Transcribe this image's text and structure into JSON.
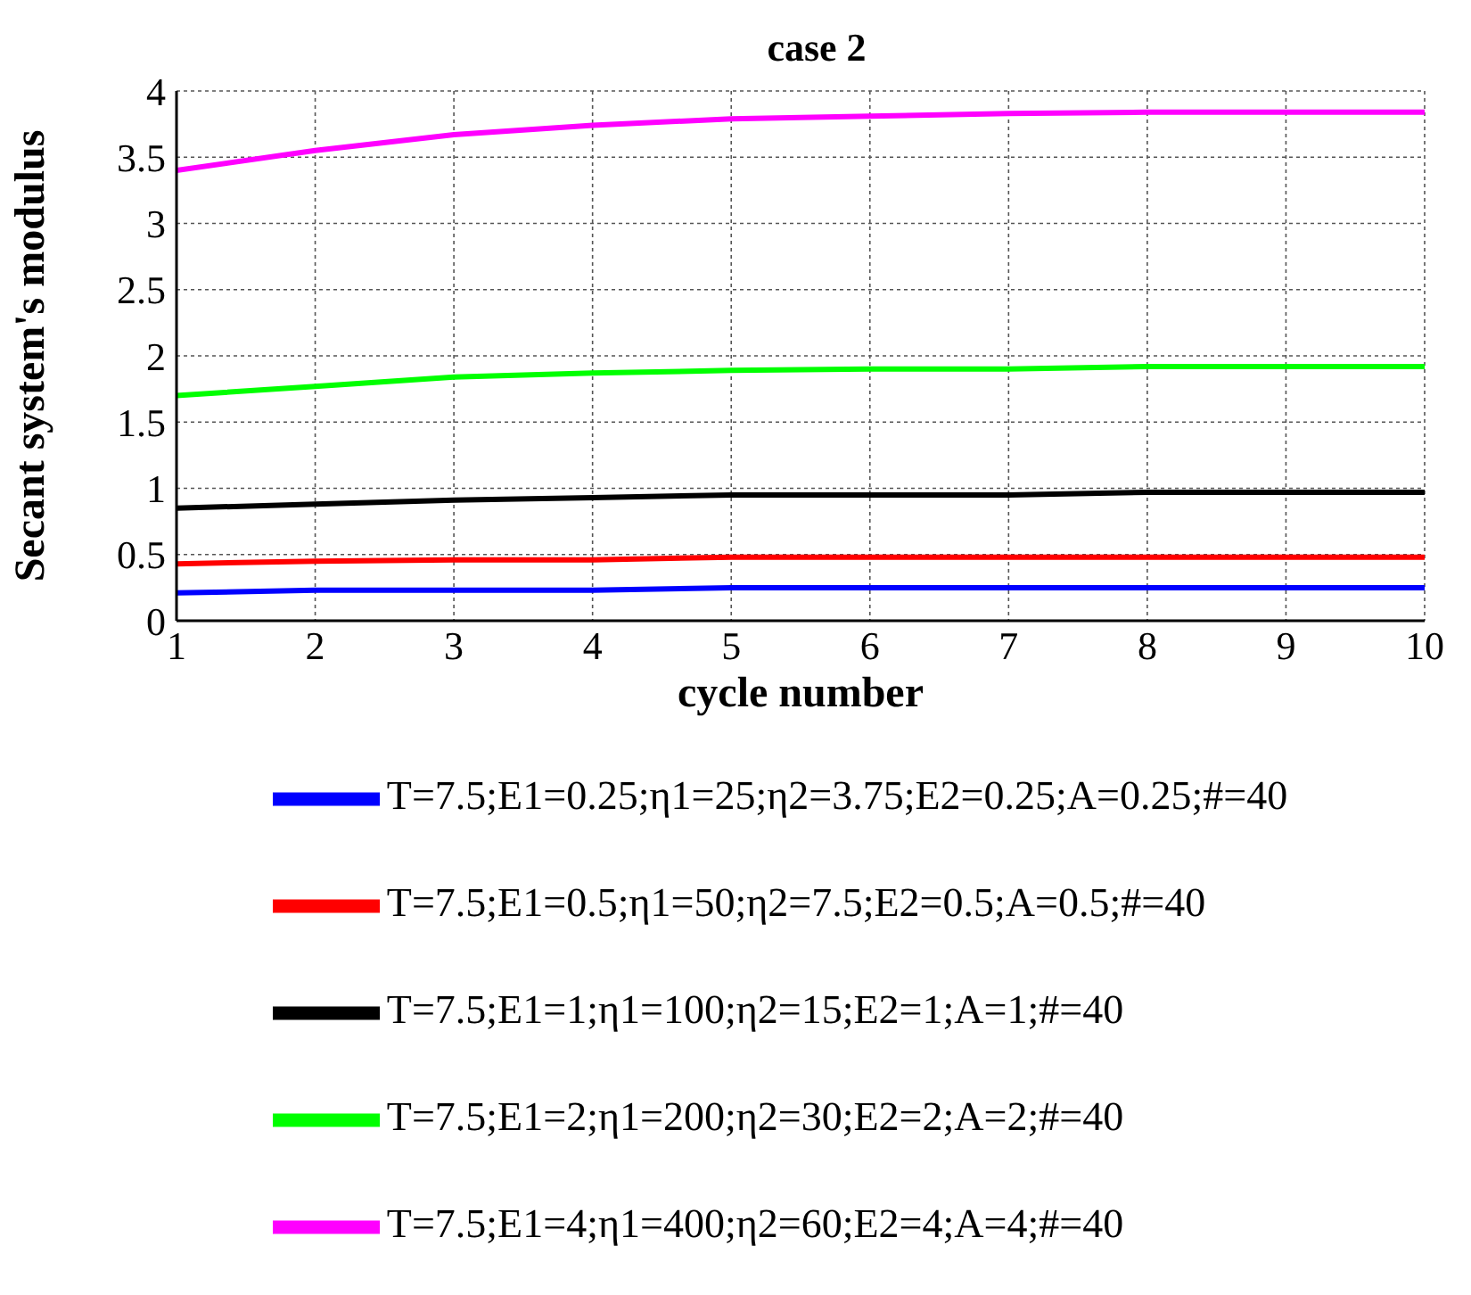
{
  "chart_data": {
    "type": "line",
    "title": "case 2",
    "xlabel": "cycle number",
    "ylabel": "Secant system's modulus",
    "x": [
      1,
      2,
      3,
      4,
      5,
      6,
      7,
      8,
      9,
      10
    ],
    "series": [
      {
        "name": "T=7.5;E1=0.25;η1=25;η2=3.75;E2=0.25;A=0.25;#=40",
        "color": "#0000ff",
        "values": [
          0.21,
          0.23,
          0.23,
          0.23,
          0.25,
          0.25,
          0.25,
          0.25,
          0.25,
          0.25
        ]
      },
      {
        "name": "T=7.5;E1=0.5;η1=50;η2=7.5;E2=0.5;A=0.5;#=40",
        "color": "#ff0000",
        "values": [
          0.43,
          0.45,
          0.46,
          0.46,
          0.48,
          0.48,
          0.48,
          0.48,
          0.48,
          0.48
        ]
      },
      {
        "name": "T=7.5;E1=1;η1=100;η2=15;E2=1;A=1;#=40",
        "color": "#000000",
        "values": [
          0.85,
          0.88,
          0.91,
          0.93,
          0.95,
          0.95,
          0.95,
          0.97,
          0.97,
          0.97
        ]
      },
      {
        "name": "T=7.5;E1=2;η1=200;η2=30;E2=2;A=2;#=40",
        "color": "#00ff00",
        "values": [
          1.7,
          1.77,
          1.84,
          1.87,
          1.89,
          1.9,
          1.9,
          1.92,
          1.92,
          1.92
        ]
      },
      {
        "name": "T=7.5;E1=4;η1=400;η2=60;E2=4;A=4;#=40",
        "color": "#ff00ff",
        "values": [
          3.4,
          3.55,
          3.67,
          3.74,
          3.79,
          3.81,
          3.83,
          3.84,
          3.84,
          3.84
        ]
      }
    ],
    "xlim": [
      1,
      10
    ],
    "xticks": [
      1,
      2,
      3,
      4,
      5,
      6,
      7,
      8,
      9,
      10
    ],
    "ylim": [
      0,
      4
    ],
    "yticks": [
      0,
      0.5,
      1,
      1.5,
      2,
      2.5,
      3,
      3.5,
      4
    ],
    "grid": true,
    "legend": "bottom",
    "marker": "none",
    "line_style": "solid"
  }
}
